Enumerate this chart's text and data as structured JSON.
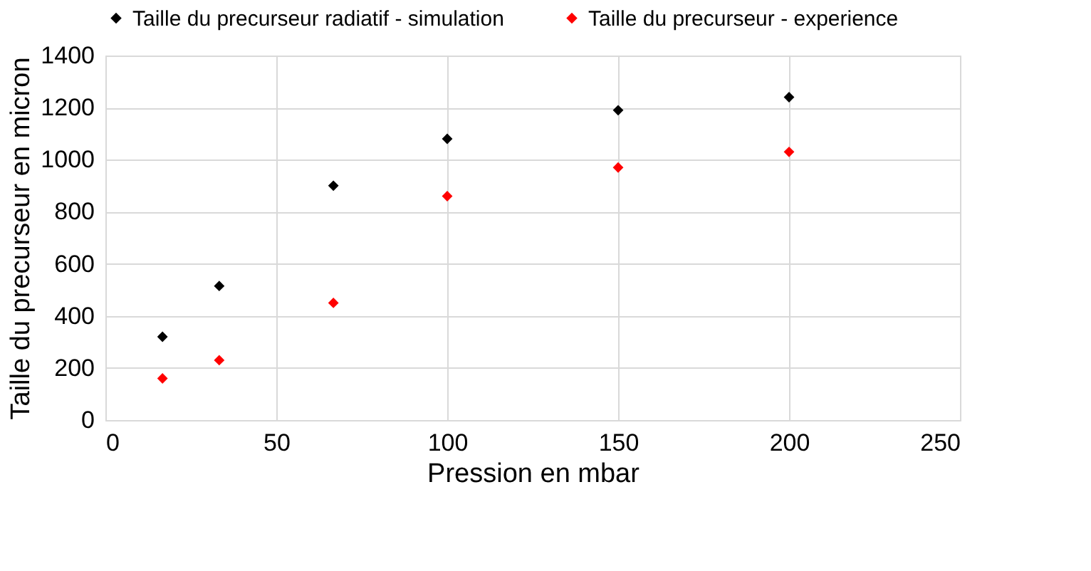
{
  "chart_data": {
    "type": "scatter",
    "xlabel": "Pression en mbar",
    "ylabel": "Taille du precurseur en micron",
    "x": [
      16.7,
      33.3,
      66.7,
      100,
      150,
      200
    ],
    "series": [
      {
        "name": "Taille du precurseur radiatif - simulation",
        "color": "#000000",
        "values": [
          320,
          515,
          900,
          1080,
          1190,
          1240
        ]
      },
      {
        "name": "Taille du precurseur - experience",
        "color": "#ff0000",
        "values": [
          160,
          230,
          450,
          860,
          970,
          1030
        ]
      }
    ],
    "xlim": [
      0,
      250
    ],
    "xticks": [
      0,
      50,
      100,
      150,
      200,
      250
    ],
    "ylim": [
      0,
      1400
    ],
    "yticks": [
      0,
      200,
      400,
      600,
      800,
      1000,
      1200,
      1400
    ],
    "grid": true,
    "legend": "top",
    "marker": "diamond"
  }
}
